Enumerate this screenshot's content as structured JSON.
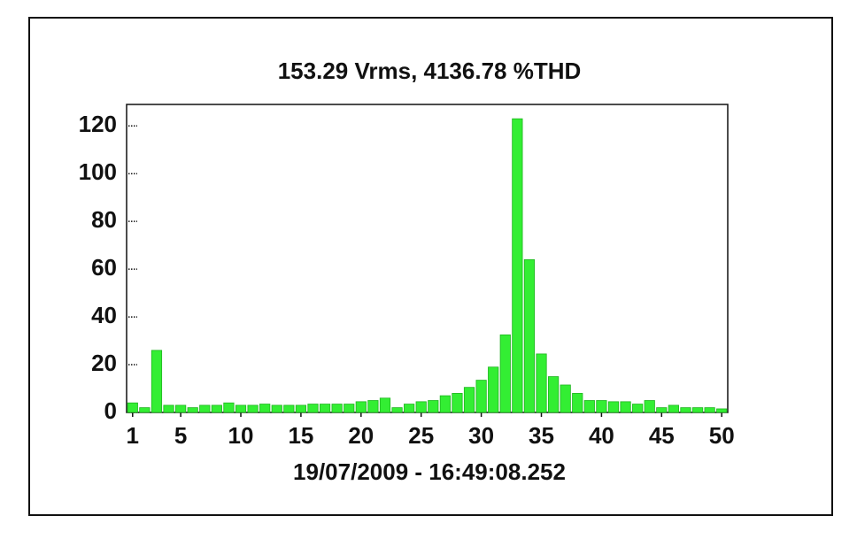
{
  "chart_data": {
    "type": "bar",
    "title": "153.29 Vrms, 4136.78 %THD",
    "x_label": "19/07/2009 - 16:49:08.252",
    "x": [
      1,
      2,
      3,
      4,
      5,
      6,
      7,
      8,
      9,
      10,
      11,
      12,
      13,
      14,
      15,
      16,
      17,
      18,
      19,
      20,
      21,
      22,
      23,
      24,
      25,
      26,
      27,
      28,
      29,
      30,
      31,
      32,
      33,
      34,
      35,
      36,
      37,
      38,
      39,
      40,
      41,
      42,
      43,
      44,
      45,
      46,
      47,
      48,
      49,
      50
    ],
    "values": [
      4,
      2,
      26,
      3,
      3,
      2,
      3,
      3,
      4,
      3,
      3,
      3.5,
      3,
      3,
      3,
      3.5,
      3.5,
      3.5,
      3.5,
      4.5,
      5,
      6,
      2,
      3.5,
      4.5,
      5,
      7,
      8,
      10.5,
      13.5,
      19,
      32.5,
      123,
      64,
      24.5,
      15,
      11.5,
      8,
      5,
      5,
      4.5,
      4.5,
      3.5,
      5,
      2,
      3,
      2,
      2,
      2,
      1.5
    ],
    "color": "#33ee33",
    "xlim": [
      0.5,
      50.5
    ],
    "xticks": [
      1,
      5,
      10,
      15,
      20,
      25,
      30,
      35,
      40,
      45,
      50
    ],
    "ylim": [
      0,
      129
    ],
    "yticks": [
      0,
      20,
      40,
      60,
      80,
      100,
      120
    ]
  }
}
